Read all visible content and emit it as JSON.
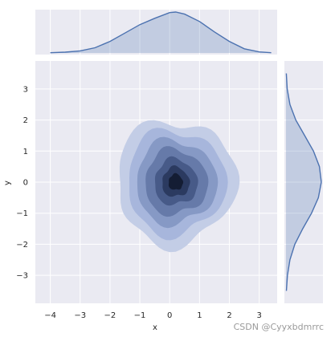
{
  "chart_data": {
    "type": "kde_joint",
    "xlabel": "x",
    "ylabel": "y",
    "xlim": [
      -4.5,
      3.6
    ],
    "ylim": [
      -3.9,
      3.9
    ],
    "x_ticks": [
      -4,
      -3,
      -2,
      -1,
      0,
      1,
      2,
      3
    ],
    "y_ticks": [
      -3,
      -2,
      -1,
      0,
      1,
      2,
      3
    ],
    "grid": true,
    "joint_kde": {
      "center": [
        0.2,
        0.0
      ],
      "levels": [
        {
          "level": 1,
          "rx": 2.0,
          "ry": 2.0,
          "color": "#c3cde6"
        },
        {
          "level": 2,
          "rx": 1.65,
          "ry": 1.68,
          "color": "#a7b6dc"
        },
        {
          "level": 3,
          "rx": 1.35,
          "ry": 1.35,
          "color": "#8699c5"
        },
        {
          "level": 4,
          "rx": 1.05,
          "ry": 1.05,
          "color": "#667aa9"
        },
        {
          "level": 5,
          "rx": 0.72,
          "ry": 0.74,
          "color": "#475a88"
        },
        {
          "level": 6,
          "rx": 0.46,
          "ry": 0.48,
          "color": "#2b3a60"
        },
        {
          "level": 7,
          "rx": 0.24,
          "ry": 0.26,
          "color": "#141d34"
        }
      ]
    },
    "marginal_x": {
      "x": [
        -4.0,
        -3.5,
        -3.0,
        -2.5,
        -2.0,
        -1.5,
        -1.0,
        -0.5,
        0.0,
        0.2,
        0.5,
        1.0,
        1.5,
        2.0,
        2.5,
        3.0,
        3.4
      ],
      "density": [
        0.002,
        0.008,
        0.02,
        0.05,
        0.11,
        0.19,
        0.27,
        0.33,
        0.385,
        0.39,
        0.37,
        0.3,
        0.2,
        0.11,
        0.04,
        0.01,
        0.002
      ]
    },
    "marginal_y": {
      "y": [
        -3.5,
        -3.0,
        -2.5,
        -2.0,
        -1.5,
        -1.0,
        -0.5,
        0.0,
        0.5,
        1.0,
        1.5,
        2.0,
        2.5,
        3.0,
        3.5
      ],
      "density": [
        0.004,
        0.015,
        0.04,
        0.09,
        0.17,
        0.26,
        0.33,
        0.36,
        0.34,
        0.28,
        0.19,
        0.1,
        0.04,
        0.012,
        0.003
      ]
    },
    "colors": {
      "panel_bg": "#eaeaf2",
      "grid": "#ffffff",
      "line": "#4c72b0",
      "fill": "#4c72b0"
    }
  },
  "watermark": "CSDN @Cyyxbdmrrc"
}
